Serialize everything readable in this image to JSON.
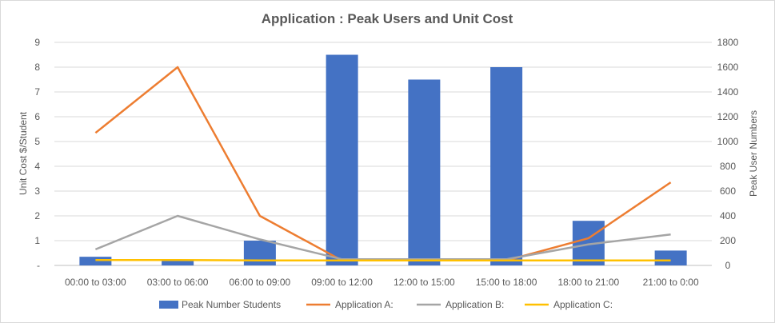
{
  "chart_data": {
    "type": "bar",
    "title": "Application : Peak Users and Unit Cost",
    "y_left_label": "Unit Cost $/Student",
    "y_right_label": "Peak User Numbers",
    "y_left_ticks": [
      "-",
      "1",
      "2",
      "3",
      "4",
      "5",
      "6",
      "7",
      "8",
      "9"
    ],
    "y_left_range": [
      0,
      9
    ],
    "y_right_ticks": [
      "0",
      "200",
      "400",
      "600",
      "800",
      "1000",
      "1200",
      "1400",
      "1600",
      "1800"
    ],
    "y_right_range": [
      0,
      1800
    ],
    "categories": [
      "00:00 to 03:00",
      "03:00 to 06:00",
      "06:00 to 09:00",
      "09:00 to 12:00",
      "12:00 to 15:00",
      "15:00 to 18:00",
      "18:00 to 21:00",
      "21:00 to 0:00"
    ],
    "bar_series": {
      "name": "Peak Number Students",
      "axis": "left",
      "color": "#4472c4",
      "values": [
        0.35,
        0.2,
        1.0,
        8.5,
        7.5,
        8.0,
        1.8,
        0.6
      ]
    },
    "line_series": [
      {
        "name": "Application A:",
        "axis": "left",
        "color": "#ed7d31",
        "values": [
          5.35,
          8.0,
          2.0,
          0.2,
          0.2,
          0.2,
          1.1,
          3.35
        ]
      },
      {
        "name": "Application B:",
        "axis": "left",
        "color": "#a5a5a5",
        "values": [
          0.65,
          2.0,
          1.05,
          0.25,
          0.25,
          0.25,
          0.85,
          1.25
        ]
      },
      {
        "name": "Application C:",
        "axis": "left",
        "color": "#ffc000",
        "values": [
          0.22,
          0.22,
          0.2,
          0.2,
          0.2,
          0.2,
          0.2,
          0.2
        ]
      }
    ],
    "grid": true,
    "legend_position": "bottom"
  }
}
